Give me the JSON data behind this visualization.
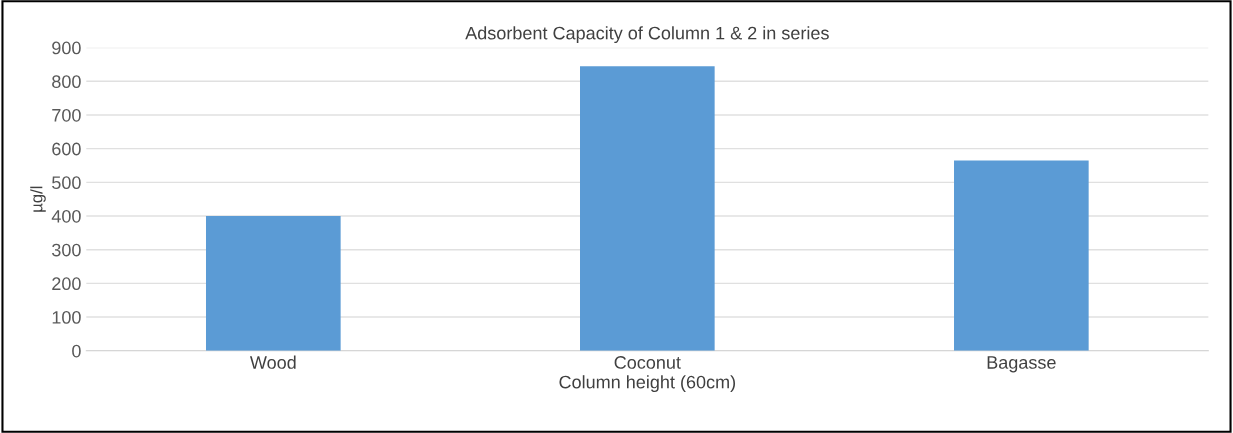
{
  "chart_data": {
    "type": "bar",
    "title": "Adsorbent Capacity of Column 1 & 2 in series",
    "xlabel": "Column height (60cm)",
    "ylabel": "µg/l",
    "categories": [
      "Wood",
      "Coconut",
      "Bagasse"
    ],
    "series": [
      {
        "color": "#5b9bd5",
        "values": [
          400,
          845,
          565
        ]
      }
    ],
    "ylim": [
      0,
      900
    ],
    "yticks": [
      0,
      100,
      200,
      300,
      400,
      500,
      600,
      700,
      800,
      900
    ],
    "grid": "y",
    "legend": false
  }
}
